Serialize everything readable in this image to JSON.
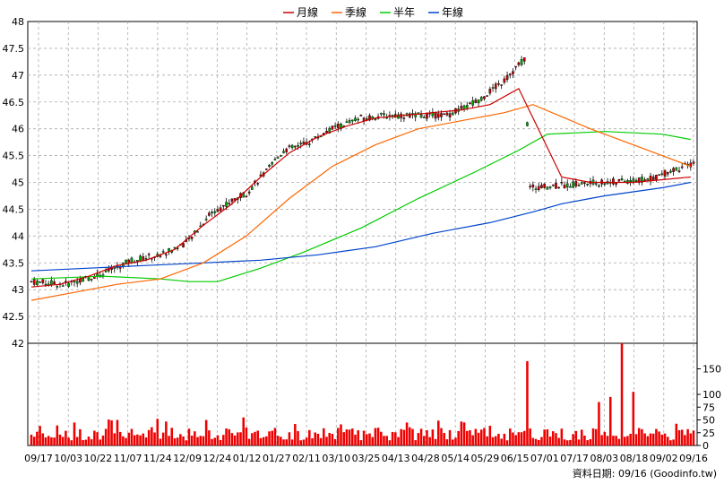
{
  "chart_data": {
    "type": "candlestick-with-volume",
    "legend": [
      {
        "name": "月線",
        "color": "#cc0000"
      },
      {
        "name": "季線",
        "color": "#ff6600"
      },
      {
        "name": "半年",
        "color": "#00cc00"
      },
      {
        "name": "年線",
        "color": "#0044cc"
      }
    ],
    "price_axis": {
      "ticks": [
        "42",
        "42.5",
        "43",
        "43.5",
        "44",
        "44.5",
        "45",
        "45.5",
        "46",
        "46.5",
        "47",
        "47.5",
        "48"
      ],
      "range": [
        42,
        48
      ]
    },
    "volume_axis": {
      "ticks": [
        "0",
        "25",
        "50",
        "75",
        "100",
        "150"
      ],
      "range": [
        0,
        200
      ]
    },
    "x_labels": [
      "09/17",
      "10/03",
      "10/22",
      "11/07",
      "11/24",
      "12/09",
      "12/24",
      "01/12",
      "01/27",
      "02/11",
      "03/10",
      "03/25",
      "04/13",
      "04/28",
      "05/14",
      "05/29",
      "06/15",
      "07/01",
      "07/17",
      "08/03",
      "08/18",
      "09/02",
      "09/16"
    ],
    "footer": "資料日期: 09/16 (Goodinfo.tw)",
    "grid": true,
    "colors": {
      "up": "#cc0000",
      "down": "#00aa00",
      "volume": "#ee0000",
      "grid": "#aaaaaa"
    },
    "ma_points": {
      "month": [
        [
          0,
          43.05
        ],
        [
          10,
          43.1
        ],
        [
          20,
          43.25
        ],
        [
          30,
          43.45
        ],
        [
          40,
          43.55
        ],
        [
          50,
          43.75
        ],
        [
          60,
          44.2
        ],
        [
          70,
          44.6
        ],
        [
          80,
          45.1
        ],
        [
          90,
          45.55
        ],
        [
          100,
          45.85
        ],
        [
          110,
          46.05
        ],
        [
          120,
          46.2
        ],
        [
          130,
          46.25
        ],
        [
          140,
          46.3
        ],
        [
          150,
          46.35
        ],
        [
          160,
          46.45
        ],
        [
          170,
          46.75
        ],
        [
          185,
          45.1
        ],
        [
          195,
          45.0
        ],
        [
          210,
          45.0
        ],
        [
          230,
          45.1
        ]
      ],
      "quarter": [
        [
          0,
          42.8
        ],
        [
          15,
          42.95
        ],
        [
          30,
          43.1
        ],
        [
          45,
          43.2
        ],
        [
          60,
          43.5
        ],
        [
          75,
          44.0
        ],
        [
          90,
          44.7
        ],
        [
          105,
          45.3
        ],
        [
          120,
          45.7
        ],
        [
          135,
          46.0
        ],
        [
          150,
          46.15
        ],
        [
          165,
          46.3
        ],
        [
          175,
          46.45
        ],
        [
          195,
          46.0
        ],
        [
          215,
          45.6
        ],
        [
          230,
          45.3
        ]
      ],
      "half": [
        [
          0,
          43.2
        ],
        [
          25,
          43.25
        ],
        [
          45,
          43.2
        ],
        [
          55,
          43.15
        ],
        [
          65,
          43.15
        ],
        [
          80,
          43.4
        ],
        [
          95,
          43.7
        ],
        [
          115,
          44.15
        ],
        [
          135,
          44.7
        ],
        [
          155,
          45.2
        ],
        [
          170,
          45.6
        ],
        [
          180,
          45.9
        ],
        [
          200,
          45.95
        ],
        [
          220,
          45.9
        ],
        [
          230,
          45.8
        ]
      ],
      "year": [
        [
          0,
          43.35
        ],
        [
          20,
          43.4
        ],
        [
          40,
          43.45
        ],
        [
          60,
          43.5
        ],
        [
          80,
          43.55
        ],
        [
          100,
          43.65
        ],
        [
          120,
          43.8
        ],
        [
          140,
          44.05
        ],
        [
          160,
          44.25
        ],
        [
          175,
          44.45
        ],
        [
          185,
          44.6
        ],
        [
          200,
          44.75
        ],
        [
          220,
          44.9
        ],
        [
          230,
          45.0
        ]
      ]
    },
    "n_days": 232
  }
}
